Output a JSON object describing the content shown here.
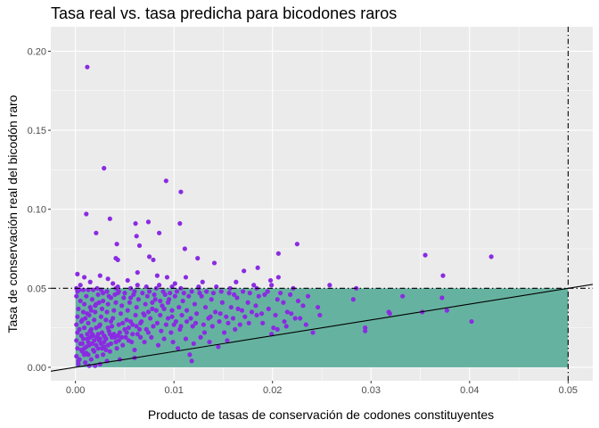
{
  "chart_data": {
    "type": "scatter",
    "title": "Tasa real vs. tasa predicha para bicodones raros",
    "xlabel": "Producto de tasas de conservación de codones constituyentes",
    "ylabel": "Tasa de conservación real del bicodón raro",
    "xlim": [
      -0.0025,
      0.0525
    ],
    "ylim": [
      -0.0085,
      0.2155
    ],
    "x_ticks": [
      0.0,
      0.01,
      0.02,
      0.03,
      0.04,
      0.05
    ],
    "x_tick_labels": [
      "0.00",
      "0.01",
      "0.02",
      "0.03",
      "0.04",
      "0.05"
    ],
    "y_ticks": [
      0.0,
      0.05,
      0.1,
      0.15,
      0.2
    ],
    "y_tick_labels": [
      "0.00",
      "0.05",
      "0.10",
      "0.15",
      "0.20"
    ],
    "grid": true,
    "colors": {
      "panel_background": "#ebebeb",
      "grid": "#ffffff",
      "points": "#8a2be2",
      "rare_region": "#66b2a0",
      "reference_lines": "#000000"
    },
    "reference_lines": {
      "threshold": 0.05,
      "style": "dashdot",
      "diagonal": {
        "slope": 1,
        "intercept": 0
      }
    },
    "rare_region": {
      "x": [
        0,
        0.05
      ],
      "y": [
        0,
        0.05
      ]
    },
    "points": [
      [
        0.0012,
        0.19
      ],
      [
        0.0029,
        0.126
      ],
      [
        0.0092,
        0.118
      ],
      [
        0.0107,
        0.111
      ],
      [
        0.0011,
        0.097
      ],
      [
        0.0035,
        0.094
      ],
      [
        0.0061,
        0.091
      ],
      [
        0.0074,
        0.092
      ],
      [
        0.0106,
        0.091
      ],
      [
        0.0021,
        0.085
      ],
      [
        0.0062,
        0.083
      ],
      [
        0.0085,
        0.085
      ],
      [
        0.0042,
        0.078
      ],
      [
        0.0065,
        0.077
      ],
      [
        0.0111,
        0.075
      ],
      [
        0.0206,
        0.072
      ],
      [
        0.0225,
        0.078
      ],
      [
        0.0355,
        0.071
      ],
      [
        0.0422,
        0.07
      ],
      [
        0.0041,
        0.069
      ],
      [
        0.0043,
        0.068
      ],
      [
        0.0075,
        0.07
      ],
      [
        0.0124,
        0.069
      ],
      [
        0.0141,
        0.066
      ],
      [
        0.0185,
        0.063
      ],
      [
        0.0079,
        0.068
      ],
      [
        0.0063,
        0.06
      ],
      [
        0.0083,
        0.058
      ],
      [
        0.0112,
        0.057
      ],
      [
        0.0171,
        0.061
      ],
      [
        0.0198,
        0.055
      ],
      [
        0.0206,
        0.057
      ],
      [
        0.0373,
        0.058
      ],
      [
        0.0002,
        0.059
      ],
      [
        0.0009,
        0.057
      ],
      [
        0.0025,
        0.058
      ],
      [
        0.0033,
        0.056
      ],
      [
        0.0053,
        0.055
      ],
      [
        0.0093,
        0.057
      ],
      [
        0.0015,
        0.054
      ],
      [
        0.0038,
        0.053
      ],
      [
        0.0063,
        0.052
      ],
      [
        0.0101,
        0.053
      ],
      [
        0.0129,
        0.054
      ],
      [
        0.0163,
        0.054
      ],
      [
        0.0005,
        0.052
      ],
      [
        0.0043,
        0.051
      ],
      [
        0.0072,
        0.051
      ],
      [
        0.0085,
        0.052
      ],
      [
        0.0098,
        0.051
      ],
      [
        0.0125,
        0.051
      ],
      [
        0.0143,
        0.051
      ],
      [
        0.0181,
        0.052
      ],
      [
        0.0199,
        0.052
      ],
      [
        0.0258,
        0.052
      ],
      [
        0.0001,
        0.05
      ],
      [
        0.0022,
        0.05
      ],
      [
        0.0041,
        0.05
      ],
      [
        0.0056,
        0.05
      ],
      [
        0.0082,
        0.05
      ],
      [
        0.0107,
        0.05
      ],
      [
        0.0125,
        0.05
      ],
      [
        0.0157,
        0.05
      ],
      [
        0.0184,
        0.05
      ],
      [
        0.0221,
        0.05
      ],
      [
        0.0285,
        0.05
      ],
      [
        0.0332,
        0.045
      ],
      [
        0.0372,
        0.044
      ],
      [
        0.0282,
        0.043
      ],
      [
        0.0318,
        0.035
      ],
      [
        0.0319,
        0.034
      ],
      [
        0.0352,
        0.035
      ],
      [
        0.0377,
        0.036
      ],
      [
        0.0294,
        0.025
      ],
      [
        0.0294,
        0.023
      ],
      [
        0.0402,
        0.029
      ],
      [
        0.0228,
        0.031
      ],
      [
        0.0241,
        0.022
      ],
      [
        0.0246,
        0.038
      ],
      [
        0.0226,
        0.042
      ],
      [
        0.0231,
        0.039
      ],
      [
        0.0205,
        0.043
      ],
      [
        0.0211,
        0.041
      ],
      [
        0.0215,
        0.035
      ],
      [
        0.0219,
        0.034
      ],
      [
        0.0223,
        0.031
      ],
      [
        0.0212,
        0.029
      ],
      [
        0.0201,
        0.025
      ],
      [
        0.0205,
        0.024
      ],
      [
        0.0199,
        0.021
      ],
      [
        0.0189,
        0.034
      ],
      [
        0.0184,
        0.033
      ],
      [
        0.0192,
        0.046
      ],
      [
        0.0175,
        0.041
      ],
      [
        0.0179,
        0.035
      ],
      [
        0.0172,
        0.032
      ],
      [
        0.0165,
        0.037
      ],
      [
        0.0161,
        0.046
      ],
      [
        0.0158,
        0.038
      ],
      [
        0.0167,
        0.027
      ],
      [
        0.0155,
        0.028
      ],
      [
        0.0162,
        0.024
      ],
      [
        0.0151,
        0.022
      ],
      [
        0.0149,
        0.041
      ],
      [
        0.0142,
        0.035
      ],
      [
        0.0138,
        0.043
      ],
      [
        0.0135,
        0.031
      ],
      [
        0.0132,
        0.038
      ],
      [
        0.0146,
        0.029
      ],
      [
        0.0139,
        0.026
      ],
      [
        0.0131,
        0.022
      ],
      [
        0.0128,
        0.045
      ],
      [
        0.0121,
        0.04
      ],
      [
        0.0123,
        0.034
      ],
      [
        0.0117,
        0.031
      ],
      [
        0.0119,
        0.026
      ],
      [
        0.0115,
        0.045
      ],
      [
        0.0109,
        0.042
      ],
      [
        0.0113,
        0.036
      ],
      [
        0.0108,
        0.033
      ],
      [
        0.0105,
        0.038
      ],
      [
        0.0101,
        0.045
      ],
      [
        0.0102,
        0.029
      ],
      [
        0.0106,
        0.024
      ],
      [
        0.0095,
        0.043
      ],
      [
        0.0098,
        0.036
      ],
      [
        0.0094,
        0.031
      ],
      [
        0.0092,
        0.027
      ],
      [
        0.0097,
        0.022
      ],
      [
        0.0091,
        0.046
      ],
      [
        0.0088,
        0.039
      ],
      [
        0.0086,
        0.033
      ],
      [
        0.0083,
        0.028
      ],
      [
        0.0087,
        0.023
      ],
      [
        0.0081,
        0.043
      ],
      [
        0.0078,
        0.037
      ],
      [
        0.0076,
        0.031
      ],
      [
        0.0079,
        0.026
      ],
      [
        0.0074,
        0.022
      ],
      [
        0.0073,
        0.045
      ],
      [
        0.0071,
        0.04
      ],
      [
        0.0069,
        0.034
      ],
      [
        0.0067,
        0.029
      ],
      [
        0.0072,
        0.024
      ],
      [
        0.0066,
        0.019
      ],
      [
        0.0064,
        0.043
      ],
      [
        0.0062,
        0.038
      ],
      [
        0.0061,
        0.033
      ],
      [
        0.0058,
        0.027
      ],
      [
        0.0063,
        0.021
      ],
      [
        0.0057,
        0.016
      ],
      [
        0.0059,
        0.046
      ],
      [
        0.0055,
        0.041
      ],
      [
        0.0053,
        0.036
      ],
      [
        0.0052,
        0.03
      ],
      [
        0.0054,
        0.025
      ],
      [
        0.0051,
        0.019
      ],
      [
        0.0049,
        0.044
      ],
      [
        0.0047,
        0.039
      ],
      [
        0.0046,
        0.034
      ],
      [
        0.0048,
        0.028
      ],
      [
        0.0045,
        0.022
      ],
      [
        0.0044,
        0.017
      ],
      [
        0.0042,
        0.012
      ],
      [
        0.0043,
        0.047
      ],
      [
        0.0041,
        0.041
      ],
      [
        0.0039,
        0.036
      ],
      [
        0.0038,
        0.031
      ],
      [
        0.0037,
        0.026
      ],
      [
        0.0039,
        0.021
      ],
      [
        0.0036,
        0.015
      ],
      [
        0.0035,
        0.01
      ],
      [
        0.0034,
        0.045
      ],
      [
        0.0033,
        0.04
      ],
      [
        0.0032,
        0.035
      ],
      [
        0.0031,
        0.03
      ],
      [
        0.0033,
        0.025
      ],
      [
        0.003,
        0.019
      ],
      [
        0.0029,
        0.013
      ],
      [
        0.0028,
        0.008
      ],
      [
        0.0028,
        0.042
      ],
      [
        0.0027,
        0.037
      ],
      [
        0.0026,
        0.032
      ],
      [
        0.0025,
        0.027
      ],
      [
        0.0027,
        0.022
      ],
      [
        0.0024,
        0.017
      ],
      [
        0.0023,
        0.012
      ],
      [
        0.0022,
        0.007
      ],
      [
        0.0023,
        0.046
      ],
      [
        0.0021,
        0.04
      ],
      [
        0.002,
        0.035
      ],
      [
        0.0019,
        0.03
      ],
      [
        0.0021,
        0.025
      ],
      [
        0.0018,
        0.02
      ],
      [
        0.0017,
        0.015
      ],
      [
        0.0019,
        0.01
      ],
      [
        0.0016,
        0.005
      ],
      [
        0.0017,
        0.043
      ],
      [
        0.0015,
        0.038
      ],
      [
        0.0014,
        0.033
      ],
      [
        0.0013,
        0.028
      ],
      [
        0.0015,
        0.023
      ],
      [
        0.0012,
        0.018
      ],
      [
        0.0011,
        0.013
      ],
      [
        0.0013,
        0.008
      ],
      [
        0.001,
        0.003
      ],
      [
        0.0011,
        0.045
      ],
      [
        0.0009,
        0.04
      ],
      [
        0.0008,
        0.035
      ],
      [
        0.0007,
        0.03
      ],
      [
        0.0009,
        0.025
      ],
      [
        0.0006,
        0.02
      ],
      [
        0.0005,
        0.015
      ],
      [
        0.0007,
        0.01
      ],
      [
        0.0004,
        0.005
      ],
      [
        0.0003,
        0.002
      ],
      [
        0.0005,
        0.042
      ],
      [
        0.0003,
        0.037
      ],
      [
        0.0002,
        0.032
      ],
      [
        0.0001,
        0.027
      ],
      [
        0.0002,
        0.022
      ],
      [
        0.0001,
        0.017
      ],
      [
        0.0002,
        0.012
      ],
      [
        0.0001,
        0.007
      ],
      [
        0.0003,
        0.004
      ],
      [
        0.0008,
        0.018
      ],
      [
        0.0012,
        0.021
      ],
      [
        0.0016,
        0.024
      ],
      [
        0.0014,
        0.014
      ],
      [
        0.0018,
        0.011
      ],
      [
        0.0022,
        0.019
      ],
      [
        0.0024,
        0.026
      ],
      [
        0.0026,
        0.015
      ],
      [
        0.0029,
        0.02
      ],
      [
        0.0031,
        0.011
      ],
      [
        0.0034,
        0.023
      ],
      [
        0.0036,
        0.029
      ],
      [
        0.004,
        0.019
      ],
      [
        0.0044,
        0.027
      ],
      [
        0.0048,
        0.014
      ],
      [
        0.0052,
        0.022
      ],
      [
        0.0056,
        0.029
      ],
      [
        0.006,
        0.011
      ],
      [
        0.0065,
        0.024
      ],
      [
        0.007,
        0.016
      ],
      [
        0.0077,
        0.019
      ],
      [
        0.0084,
        0.014
      ],
      [
        0.009,
        0.018
      ],
      [
        0.0099,
        0.016
      ],
      [
        0.0104,
        0.012
      ],
      [
        0.0112,
        0.018
      ],
      [
        0.012,
        0.015
      ],
      [
        0.0127,
        0.019
      ],
      [
        0.0136,
        0.016
      ],
      [
        0.0145,
        0.013
      ],
      [
        0.0154,
        0.017
      ],
      [
        0.0116,
        0.008
      ],
      [
        0.0118,
        0.004
      ],
      [
        0.006,
        0.006
      ],
      [
        0.0045,
        0.005
      ],
      [
        0.0032,
        0.004
      ],
      [
        0.0025,
        0.002
      ],
      [
        0.002,
        0.001
      ],
      [
        0.0014,
        0.001
      ],
      [
        0.0009,
        0.008
      ],
      [
        0.0006,
        0.011
      ],
      [
        0.0004,
        0.024
      ],
      [
        0.0006,
        0.029
      ],
      [
        0.001,
        0.031
      ],
      [
        0.0012,
        0.034
      ],
      [
        0.0016,
        0.036
      ],
      [
        0.002,
        0.039
      ],
      [
        0.0024,
        0.041
      ],
      [
        0.0028,
        0.047
      ],
      [
        0.0032,
        0.048
      ],
      [
        0.0036,
        0.044
      ],
      [
        0.004,
        0.046
      ],
      [
        0.0044,
        0.048
      ],
      [
        0.005,
        0.047
      ],
      [
        0.0056,
        0.044
      ],
      [
        0.006,
        0.048
      ],
      [
        0.0068,
        0.047
      ],
      [
        0.0075,
        0.048
      ],
      [
        0.008,
        0.046
      ],
      [
        0.0089,
        0.048
      ],
      [
        0.0096,
        0.047
      ],
      [
        0.0103,
        0.048
      ],
      [
        0.011,
        0.047
      ],
      [
        0.0118,
        0.048
      ],
      [
        0.0126,
        0.047
      ],
      [
        0.0133,
        0.048
      ],
      [
        0.014,
        0.047
      ],
      [
        0.0148,
        0.048
      ],
      [
        0.0156,
        0.047
      ],
      [
        0.0164,
        0.044
      ],
      [
        0.017,
        0.048
      ],
      [
        0.0177,
        0.047
      ],
      [
        0.0186,
        0.045
      ],
      [
        0.0195,
        0.048
      ],
      [
        0.0208,
        0.047
      ],
      [
        0.0218,
        0.046
      ],
      [
        0.0236,
        0.045
      ],
      [
        0.0001,
        0.045
      ],
      [
        0.0002,
        0.048
      ],
      [
        0.0004,
        0.049
      ],
      [
        0.0008,
        0.049
      ],
      [
        0.0013,
        0.049
      ],
      [
        0.0018,
        0.049
      ],
      [
        0.0026,
        0.049
      ],
      [
        0.0007,
        0.015
      ],
      [
        0.0009,
        0.012
      ],
      [
        0.0011,
        0.009
      ],
      [
        0.0013,
        0.016
      ],
      [
        0.0015,
        0.019
      ],
      [
        0.0017,
        0.021
      ],
      [
        0.0019,
        0.017
      ],
      [
        0.0021,
        0.014
      ],
      [
        0.0023,
        0.021
      ],
      [
        0.0025,
        0.018
      ],
      [
        0.0027,
        0.012
      ],
      [
        0.0029,
        0.016
      ],
      [
        0.0031,
        0.018
      ],
      [
        0.0033,
        0.014
      ],
      [
        0.0035,
        0.021
      ],
      [
        0.0037,
        0.019
      ],
      [
        0.0041,
        0.016
      ],
      [
        0.0043,
        0.02
      ],
      [
        0.0047,
        0.019
      ],
      [
        0.005,
        0.024
      ],
      [
        0.0054,
        0.017
      ],
      [
        0.0058,
        0.021
      ],
      [
        0.0062,
        0.026
      ],
      [
        0.0066,
        0.028
      ],
      [
        0.007,
        0.033
      ],
      [
        0.0074,
        0.035
      ],
      [
        0.0078,
        0.041
      ],
      [
        0.0082,
        0.036
      ],
      [
        0.0086,
        0.042
      ],
      [
        0.009,
        0.037
      ],
      [
        0.0094,
        0.041
      ],
      [
        0.0098,
        0.032
      ],
      [
        0.01,
        0.027
      ],
      [
        0.0107,
        0.026
      ],
      [
        0.0113,
        0.029
      ],
      [
        0.0122,
        0.028
      ],
      [
        0.013,
        0.027
      ],
      [
        0.0137,
        0.032
      ],
      [
        0.0147,
        0.034
      ],
      [
        0.0153,
        0.032
      ],
      [
        0.016,
        0.031
      ],
      [
        0.0169,
        0.036
      ],
      [
        0.0176,
        0.028
      ],
      [
        0.0183,
        0.039
      ],
      [
        0.019,
        0.028
      ],
      [
        0.0196,
        0.037
      ],
      [
        0.0203,
        0.033
      ],
      [
        0.0214,
        0.026
      ],
      [
        0.0234,
        0.027
      ],
      [
        0.0248,
        0.033
      ]
    ]
  }
}
